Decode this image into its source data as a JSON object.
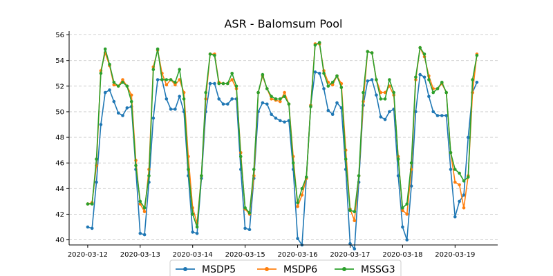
{
  "chart_data": {
    "type": "line",
    "title": "ASR - Balomsum Pool",
    "xlabel": "",
    "ylabel": "",
    "ylim": [
      39.6,
      56.3
    ],
    "xlim": [
      "2020-03-11T15:30",
      "2020-03-19T19:30"
    ],
    "grid": "horizontal dashed",
    "legend_position": "bottom-center",
    "x_tick_labels": [
      "2020-03-12",
      "2020-03-13",
      "2020-03-14",
      "2020-03-15",
      "2020-03-16",
      "2020-03-17",
      "2020-03-18",
      "2020-03-19"
    ],
    "y_ticks": [
      40,
      42,
      44,
      46,
      48,
      50,
      52,
      54,
      56
    ],
    "x": [
      "2020-03-12T00:00",
      "2020-03-12T02:00",
      "2020-03-12T04:00",
      "2020-03-12T06:00",
      "2020-03-12T08:00",
      "2020-03-12T10:00",
      "2020-03-12T12:00",
      "2020-03-12T14:00",
      "2020-03-12T16:00",
      "2020-03-12T18:00",
      "2020-03-12T20:00",
      "2020-03-12T22:00",
      "2020-03-13T00:00",
      "2020-03-13T02:00",
      "2020-03-13T04:00",
      "2020-03-13T06:00",
      "2020-03-13T08:00",
      "2020-03-13T10:00",
      "2020-03-13T12:00",
      "2020-03-13T14:00",
      "2020-03-13T16:00",
      "2020-03-13T18:00",
      "2020-03-13T20:00",
      "2020-03-13T22:00",
      "2020-03-14T00:00",
      "2020-03-14T02:00",
      "2020-03-14T04:00",
      "2020-03-14T06:00",
      "2020-03-14T08:00",
      "2020-03-14T10:00",
      "2020-03-14T12:00",
      "2020-03-14T14:00",
      "2020-03-14T16:00",
      "2020-03-14T18:00",
      "2020-03-14T20:00",
      "2020-03-14T22:00",
      "2020-03-15T00:00",
      "2020-03-15T02:00",
      "2020-03-15T04:00",
      "2020-03-15T06:00",
      "2020-03-15T08:00",
      "2020-03-15T10:00",
      "2020-03-15T12:00",
      "2020-03-15T14:00",
      "2020-03-15T16:00",
      "2020-03-15T18:00",
      "2020-03-15T20:00",
      "2020-03-15T22:00",
      "2020-03-16T00:00",
      "2020-03-16T02:00",
      "2020-03-16T04:00",
      "2020-03-16T06:00",
      "2020-03-16T08:00",
      "2020-03-16T10:00",
      "2020-03-16T12:00",
      "2020-03-16T14:00",
      "2020-03-16T16:00",
      "2020-03-16T18:00",
      "2020-03-16T20:00",
      "2020-03-16T22:00",
      "2020-03-17T00:00",
      "2020-03-17T02:00",
      "2020-03-17T04:00",
      "2020-03-17T06:00",
      "2020-03-17T08:00",
      "2020-03-17T10:00",
      "2020-03-17T12:00",
      "2020-03-17T14:00",
      "2020-03-17T16:00",
      "2020-03-17T18:00",
      "2020-03-17T20:00",
      "2020-03-17T22:00",
      "2020-03-18T00:00",
      "2020-03-18T02:00",
      "2020-03-18T04:00",
      "2020-03-18T06:00",
      "2020-03-18T08:00",
      "2020-03-18T10:00",
      "2020-03-18T12:00",
      "2020-03-18T14:00",
      "2020-03-18T16:00",
      "2020-03-18T18:00",
      "2020-03-18T20:00",
      "2020-03-18T22:00",
      "2020-03-19T00:00",
      "2020-03-19T02:00",
      "2020-03-19T04:00",
      "2020-03-19T06:00",
      "2020-03-19T08:00",
      "2020-03-19T10:00"
    ],
    "series": [
      {
        "name": "MSDP5",
        "color": "#1f77b4",
        "values": [
          41.0,
          40.9,
          44.5,
          49.0,
          51.5,
          51.7,
          50.8,
          49.9,
          49.7,
          50.3,
          50.4,
          45.5,
          40.5,
          40.4,
          44.5,
          49.5,
          52.5,
          52.5,
          51.0,
          50.2,
          50.2,
          51.2,
          50.0,
          45.0,
          40.6,
          40.5,
          44.8,
          50.0,
          52.2,
          52.2,
          51.0,
          50.6,
          50.6,
          51.0,
          51.0,
          45.5,
          40.9,
          40.8,
          44.8,
          50.0,
          50.7,
          50.6,
          49.8,
          49.5,
          49.3,
          49.2,
          49.3,
          45.5,
          40.1,
          39.6,
          44.8,
          50.5,
          53.1,
          53.0,
          51.8,
          50.1,
          49.8,
          50.7,
          50.3,
          45.5,
          39.7,
          39.3,
          44.5,
          50.5,
          52.4,
          52.5,
          51.3,
          49.6,
          49.4,
          50.0,
          50.2,
          45.0,
          41.0,
          40.0,
          44.2,
          50.0,
          52.9,
          52.7,
          51.2,
          50.0,
          49.7,
          49.7,
          49.7,
          45.5,
          41.8,
          43.0,
          43.5,
          48.0,
          51.5,
          52.3
        ]
      },
      {
        "name": "MSDP6",
        "color": "#ff7f0e",
        "values": [
          42.8,
          42.9,
          45.8,
          53.2,
          54.6,
          53.6,
          52.1,
          52.0,
          52.5,
          52.0,
          51.3,
          46.2,
          42.8,
          42.2,
          45.5,
          53.5,
          54.8,
          53.0,
          52.1,
          52.5,
          52.1,
          52.5,
          51.5,
          46.5,
          42.5,
          41.3,
          45.0,
          51.0,
          54.5,
          54.5,
          52.3,
          52.2,
          52.2,
          52.5,
          51.8,
          46.8,
          42.4,
          42.0,
          45.0,
          51.5,
          52.8,
          51.8,
          51.0,
          50.9,
          50.8,
          51.5,
          50.6,
          46.5,
          42.6,
          43.5,
          44.8,
          50.5,
          55.3,
          55.3,
          53.2,
          52.3,
          52.1,
          52.8,
          52.2,
          47.0,
          42.4,
          41.5,
          45.0,
          50.8,
          54.7,
          54.6,
          52.5,
          51.5,
          51.5,
          52.0,
          51.3,
          46.5,
          42.3,
          42.0,
          45.5,
          52.5,
          55.0,
          54.3,
          52.8,
          51.8,
          51.8,
          52.2,
          51.5,
          46.8,
          44.5,
          44.3,
          42.5,
          45.0,
          51.5,
          54.5
        ]
      },
      {
        "name": "MSSG3",
        "color": "#2ca02c",
        "values": [
          42.8,
          42.8,
          46.3,
          53.0,
          54.9,
          53.7,
          52.3,
          52.0,
          52.3,
          52.0,
          50.8,
          45.8,
          43.0,
          42.5,
          45.0,
          53.3,
          54.9,
          52.5,
          52.5,
          52.5,
          52.3,
          53.3,
          51.0,
          45.5,
          42.0,
          41.0,
          45.0,
          51.5,
          54.5,
          54.4,
          52.2,
          52.2,
          52.2,
          53.0,
          52.0,
          46.5,
          42.5,
          42.1,
          45.5,
          51.5,
          52.9,
          51.8,
          51.2,
          51.0,
          51.0,
          51.2,
          50.6,
          46.0,
          42.9,
          44.0,
          44.9,
          50.4,
          55.2,
          55.4,
          53.0,
          52.0,
          52.3,
          52.8,
          51.9,
          46.3,
          42.3,
          42.2,
          45.0,
          51.5,
          54.7,
          54.6,
          52.5,
          51.0,
          51.0,
          52.5,
          51.5,
          46.3,
          42.5,
          42.8,
          46.0,
          52.7,
          55.0,
          54.5,
          52.5,
          51.5,
          51.8,
          52.3,
          51.5,
          46.8,
          45.5,
          45.2,
          44.6,
          44.9,
          52.5,
          54.4
        ]
      }
    ]
  }
}
